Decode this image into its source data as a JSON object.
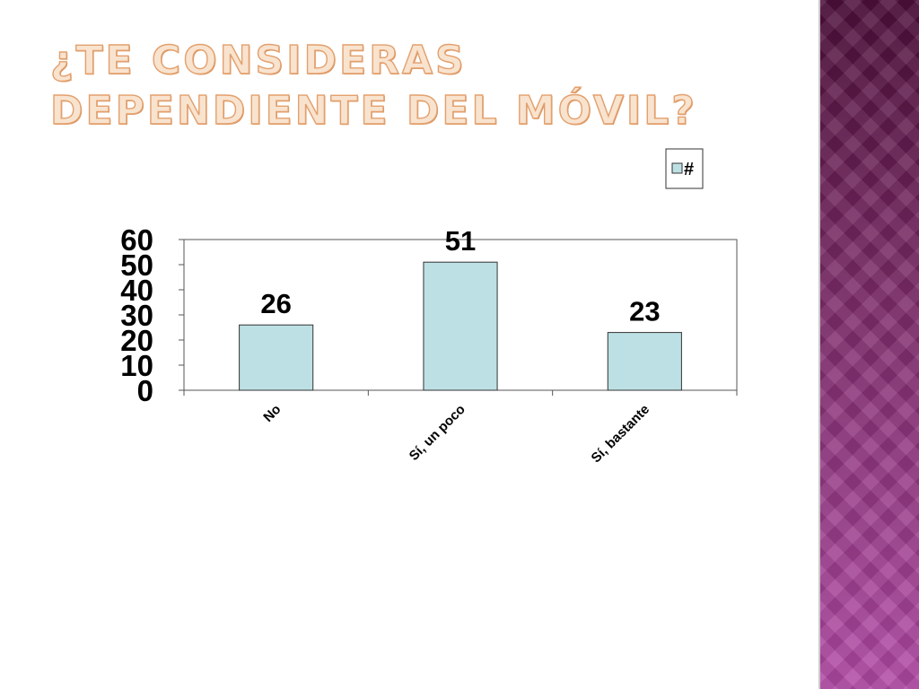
{
  "slide": {
    "title": "¿Te consideras dependiente del móvil?"
  },
  "theme": {
    "bar_fill": "#bde0e4",
    "bar_stroke": "#333333",
    "panel_top": "#4d0f3a",
    "panel_bottom": "#b24aa6"
  },
  "chart_data": {
    "type": "bar",
    "title": "",
    "xlabel": "",
    "ylabel": "",
    "categories": [
      "No",
      "Sí, un poco",
      "Sí, bastante"
    ],
    "series": [
      {
        "name": "#",
        "values": [
          26,
          51,
          23
        ]
      }
    ],
    "ylim": [
      0,
      60
    ],
    "yticks": [
      0,
      10,
      20,
      30,
      40,
      50,
      60
    ],
    "data_labels": true,
    "grid": false,
    "legend": "top-right"
  }
}
